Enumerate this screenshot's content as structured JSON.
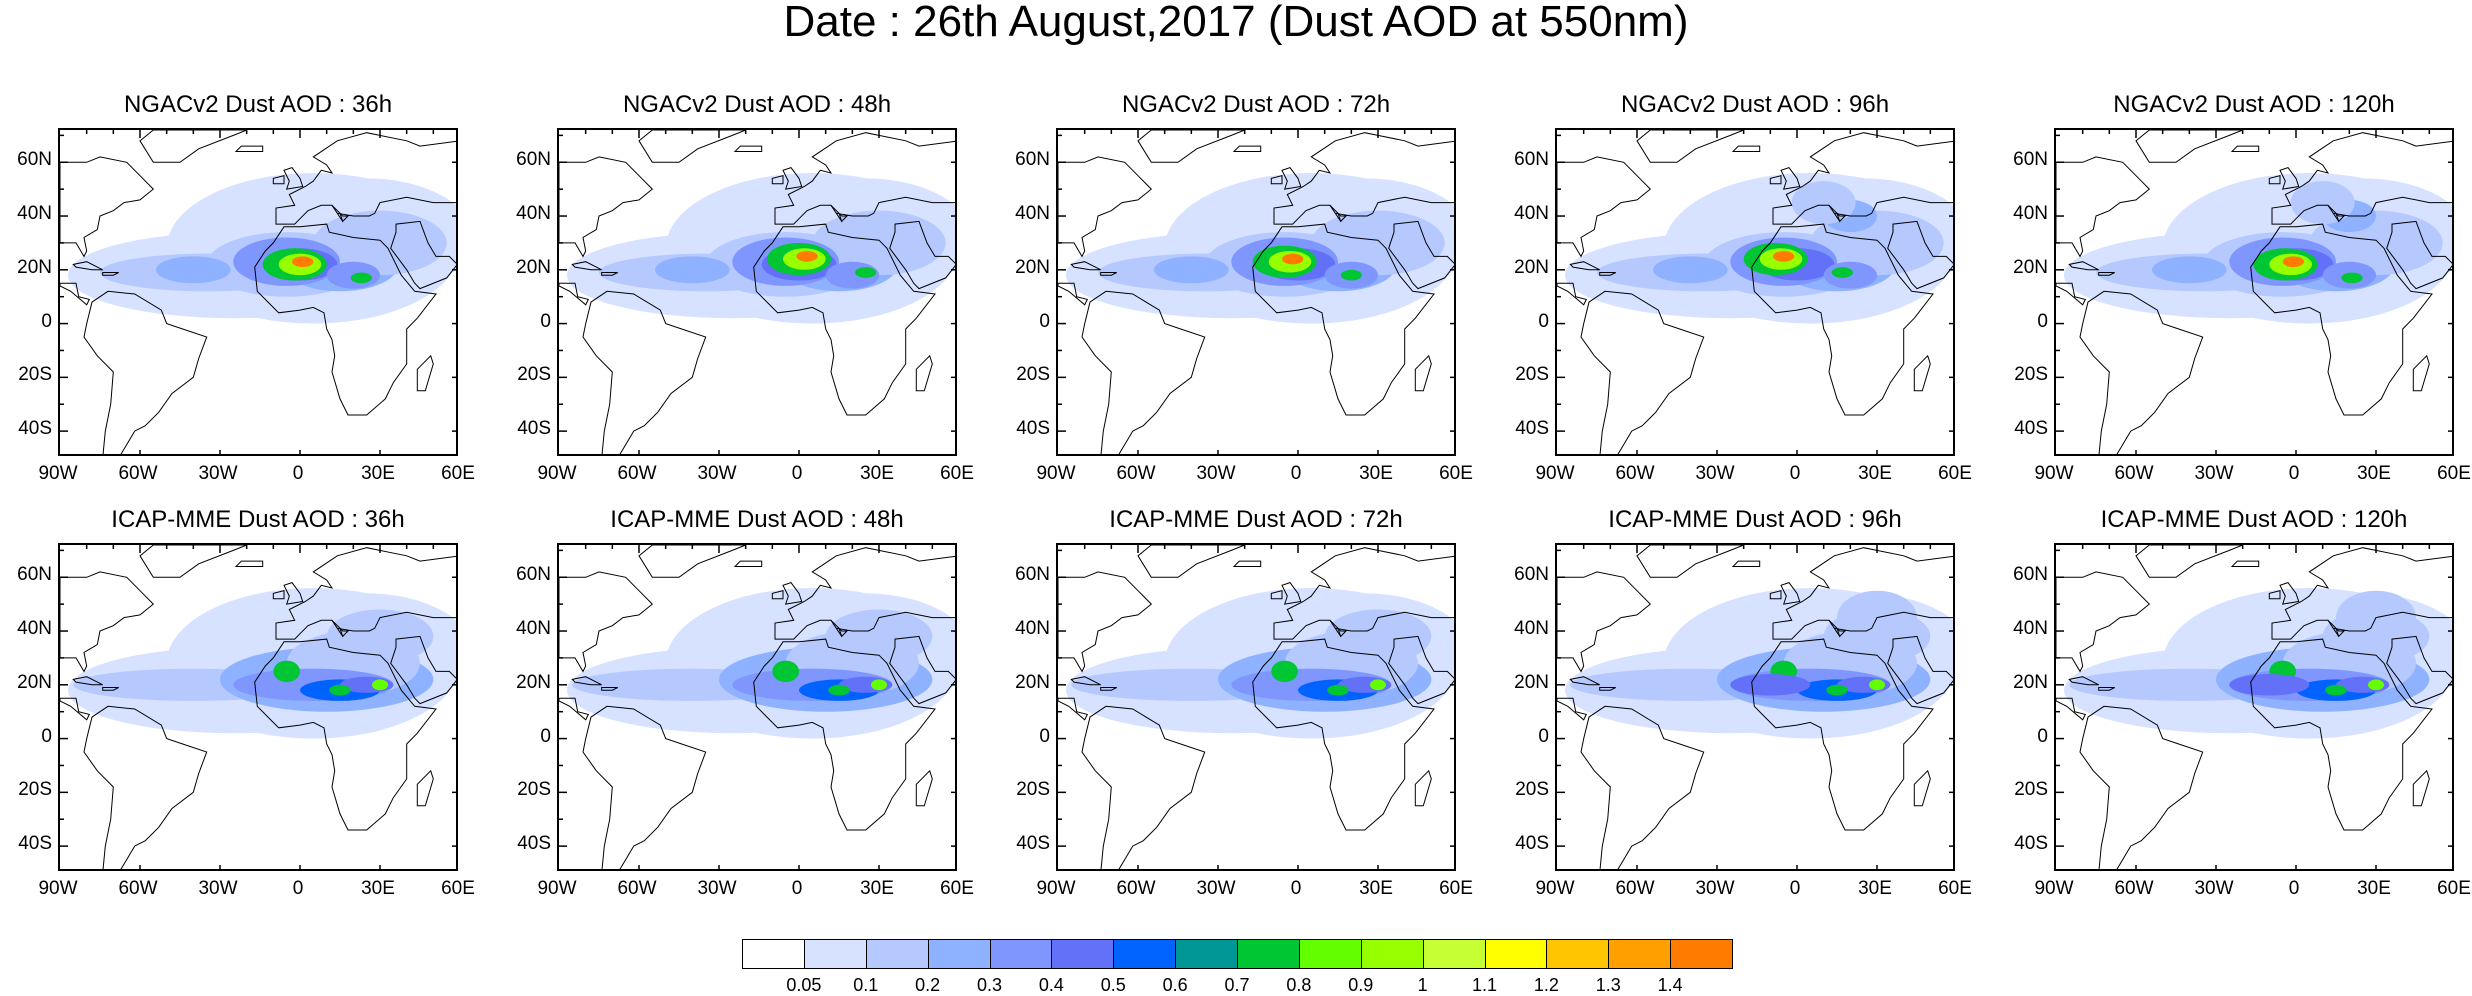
{
  "title": "Date : 26th August,2017 (Dust AOD at 550nm)",
  "panels": [
    {
      "title": "NGACv2 Dust AOD : 36h",
      "model": "NGACv2",
      "lead": "36h"
    },
    {
      "title": "NGACv2 Dust AOD : 48h",
      "model": "NGACv2",
      "lead": "48h"
    },
    {
      "title": "NGACv2 Dust AOD : 72h",
      "model": "NGACv2",
      "lead": "72h"
    },
    {
      "title": "NGACv2 Dust AOD : 96h",
      "model": "NGACv2",
      "lead": "96h"
    },
    {
      "title": "NGACv2 Dust AOD : 120h",
      "model": "NGACv2",
      "lead": "120h"
    },
    {
      "title": "ICAP-MME Dust AOD : 36h",
      "model": "ICAP-MME",
      "lead": "36h"
    },
    {
      "title": "ICAP-MME Dust AOD : 48h",
      "model": "ICAP-MME",
      "lead": "48h"
    },
    {
      "title": "ICAP-MME Dust AOD : 72h",
      "model": "ICAP-MME",
      "lead": "72h"
    },
    {
      "title": "ICAP-MME Dust AOD : 96h",
      "model": "ICAP-MME",
      "lead": "96h"
    },
    {
      "title": "ICAP-MME Dust AOD : 120h",
      "model": "ICAP-MME",
      "lead": "120h"
    }
  ],
  "lat_ticks": [
    "60N",
    "40N",
    "20N",
    "0",
    "20S",
    "40S"
  ],
  "lon_ticks": [
    "90W",
    "60W",
    "30W",
    "0",
    "30E",
    "60E"
  ],
  "map_extent": {
    "lon": [
      -90,
      60
    ],
    "lat": [
      -50,
      72
    ]
  },
  "colorbar": {
    "levels": [
      "0.05",
      "0.1",
      "0.2",
      "0.3",
      "0.4",
      "0.5",
      "0.6",
      "0.7",
      "0.8",
      "0.9",
      "1",
      "1.1",
      "1.2",
      "1.3",
      "1.4"
    ],
    "colors": [
      "#ffffff",
      "#d6e2ff",
      "#b5c9ff",
      "#8eb2ff",
      "#7f96ff",
      "#6370f8",
      "#0063ff",
      "#009696",
      "#00c633",
      "#63ff00",
      "#96ff00",
      "#c6ff33",
      "#ffff00",
      "#ffc600",
      "#ffa000",
      "#ff7c00",
      "#ff1900"
    ]
  }
}
